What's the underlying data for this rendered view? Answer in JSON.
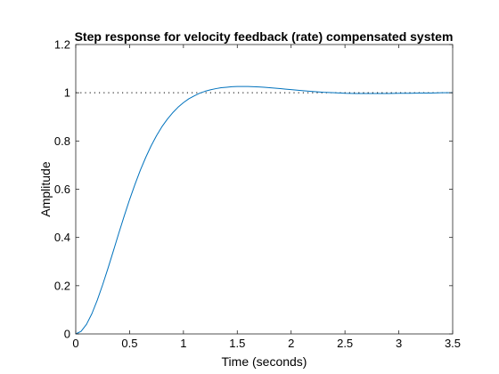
{
  "chart_data": {
    "type": "line",
    "title": "Step response for velocity feedback (rate) compensated system",
    "xlabel": "Time (seconds)",
    "ylabel": "Amplitude",
    "xlim": [
      0,
      3.5
    ],
    "ylim": [
      0,
      1.2
    ],
    "xticks": [
      "0",
      "0.5",
      "1",
      "1.5",
      "2",
      "2.5",
      "3",
      "3.5"
    ],
    "yticks": [
      "0",
      "0.2",
      "0.4",
      "0.6",
      "0.8",
      "1",
      "1.2"
    ],
    "grid": false,
    "legend": "none",
    "reference_line": {
      "y": 1,
      "style": "dotted"
    },
    "series": [
      {
        "color": "#0072BD",
        "x": [
          0,
          0.05,
          0.1,
          0.15,
          0.2,
          0.25,
          0.3,
          0.35,
          0.4,
          0.45,
          0.5,
          0.55,
          0.6,
          0.65,
          0.7,
          0.75,
          0.8,
          0.85,
          0.9,
          0.95,
          1.0,
          1.05,
          1.1,
          1.15,
          1.2,
          1.25,
          1.3,
          1.35,
          1.4,
          1.45,
          1.5,
          1.55,
          1.6,
          1.65,
          1.7,
          1.75,
          1.8,
          1.85,
          1.9,
          1.95,
          2.0,
          2.1,
          2.2,
          2.3,
          2.4,
          2.5,
          2.6,
          2.7,
          2.8,
          2.9,
          3.0,
          3.1,
          3.2,
          3.3,
          3.4,
          3.5
        ],
        "y": [
          0,
          0.011,
          0.04,
          0.084,
          0.14,
          0.204,
          0.273,
          0.345,
          0.418,
          0.489,
          0.557,
          0.62,
          0.679,
          0.732,
          0.78,
          0.822,
          0.859,
          0.89,
          0.917,
          0.94,
          0.959,
          0.975,
          0.987,
          0.998,
          1.006,
          1.012,
          1.017,
          1.021,
          1.023,
          1.025,
          1.026,
          1.026,
          1.026,
          1.025,
          1.024,
          1.023,
          1.021,
          1.019,
          1.017,
          1.015,
          1.013,
          1.009,
          1.005,
          1.002,
          1.0,
          0.998,
          0.997,
          0.997,
          0.997,
          0.997,
          0.998,
          0.998,
          0.999,
          0.999,
          1.0,
          1.0
        ]
      }
    ]
  }
}
